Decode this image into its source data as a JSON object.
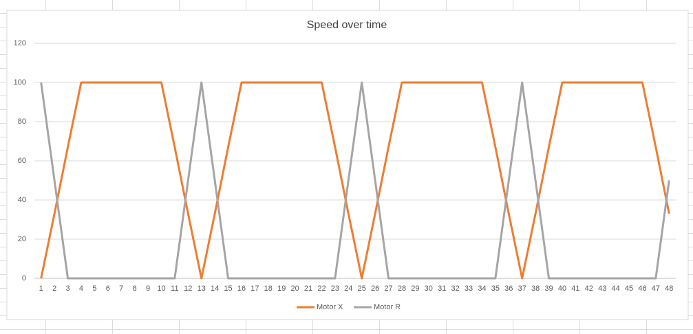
{
  "chart_data": {
    "type": "line",
    "title": "Speed over time",
    "categories": [
      1,
      2,
      3,
      4,
      5,
      6,
      7,
      8,
      9,
      10,
      11,
      12,
      13,
      14,
      15,
      16,
      17,
      18,
      19,
      20,
      21,
      22,
      23,
      24,
      25,
      26,
      27,
      28,
      29,
      30,
      31,
      32,
      33,
      34,
      35,
      36,
      37,
      38,
      39,
      40,
      41,
      42,
      43,
      44,
      45,
      46,
      47,
      48
    ],
    "series": [
      {
        "name": "Motor X",
        "color": "#ed7d31",
        "values": [
          0,
          33,
          67,
          100,
          100,
          100,
          100,
          100,
          100,
          100,
          67,
          33,
          0,
          33,
          67,
          100,
          100,
          100,
          100,
          100,
          100,
          100,
          67,
          33,
          0,
          33,
          67,
          100,
          100,
          100,
          100,
          100,
          100,
          100,
          67,
          33,
          0,
          33,
          67,
          100,
          100,
          100,
          100,
          100,
          100,
          100,
          67,
          33
        ]
      },
      {
        "name": "Motor R",
        "color": "#a5a5a5",
        "values": [
          100,
          50,
          0,
          0,
          0,
          0,
          0,
          0,
          0,
          0,
          0,
          50,
          100,
          50,
          0,
          0,
          0,
          0,
          0,
          0,
          0,
          0,
          0,
          50,
          100,
          50,
          0,
          0,
          0,
          0,
          0,
          0,
          0,
          0,
          0,
          50,
          100,
          50,
          0,
          0,
          0,
          0,
          0,
          0,
          0,
          0,
          0,
          50
        ]
      }
    ],
    "ylim": [
      0,
      120
    ],
    "yticks": [
      0,
      20,
      40,
      60,
      80,
      100,
      120
    ],
    "grid": true,
    "legend": "bottom"
  }
}
